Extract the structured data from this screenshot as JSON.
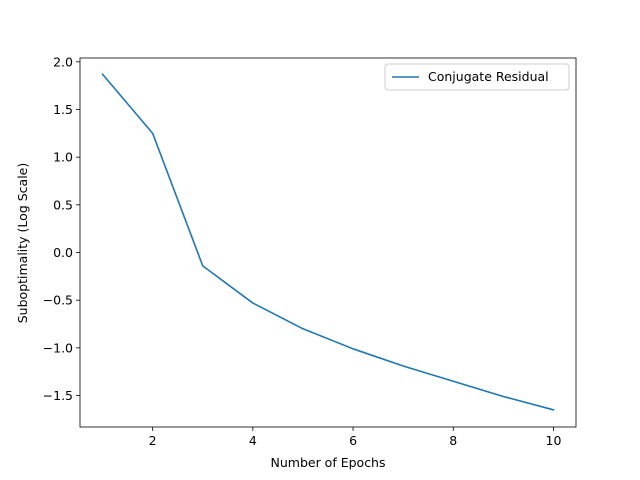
{
  "chart_data": {
    "type": "line",
    "title": "",
    "xlabel": "Number of Epochs",
    "ylabel": "Suboptimality (Log Scale)",
    "xlim": [
      0.55,
      10.45
    ],
    "ylim": [
      -1.83,
      2.04
    ],
    "x_ticks": [
      2,
      4,
      6,
      8,
      10
    ],
    "x_tick_labels": [
      "2",
      "4",
      "6",
      "8",
      "10"
    ],
    "y_ticks": [
      -1.5,
      -1.0,
      -0.5,
      0.0,
      0.5,
      1.0,
      1.5,
      2.0
    ],
    "y_tick_labels": [
      "−1.5",
      "−1.0",
      "−0.5",
      "0.0",
      "0.5",
      "1.0",
      "1.5",
      "2.0"
    ],
    "grid": false,
    "legend_position": "top-right",
    "series": [
      {
        "name": "Conjugate Residual",
        "color": "#1f77b4",
        "x": [
          1,
          2,
          3,
          4,
          5,
          6,
          7,
          8,
          9,
          10
        ],
        "y": [
          1.87,
          1.25,
          -0.14,
          -0.53,
          -0.8,
          -1.01,
          -1.19,
          -1.35,
          -1.51,
          -1.65
        ]
      }
    ]
  }
}
